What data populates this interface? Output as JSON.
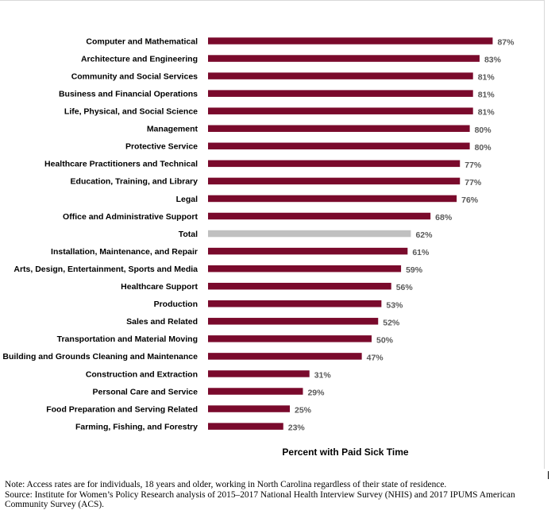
{
  "chart_data": {
    "type": "bar",
    "orientation": "horizontal",
    "xlabel": "Percent with Paid Sick Time",
    "categories": [
      "Computer and Mathematical",
      "Architecture and Engineering",
      "Community and Social Services",
      "Business and Financial Operations",
      "Life, Physical, and Social Science",
      "Management",
      "Protective Service",
      "Healthcare Practitioners and Technical",
      "Education, Training, and Library",
      "Legal",
      "Office and Administrative Support",
      "Total",
      "Installation, Maintenance, and Repair",
      "Arts, Design, Entertainment, Sports and Media",
      "Healthcare Support",
      "Production",
      "Sales and Related",
      "Transportation and Material Moving",
      "Building and Grounds Cleaning and Maintenance",
      "Construction and Extraction",
      "Personal Care and Service",
      "Food Preparation and Serving Related",
      "Farming, Fishing, and Forestry"
    ],
    "values": [
      87,
      83,
      81,
      81,
      81,
      80,
      80,
      77,
      77,
      76,
      68,
      62,
      61,
      59,
      56,
      53,
      52,
      50,
      47,
      31,
      29,
      25,
      23
    ],
    "value_labels": [
      "87%",
      "83%",
      "81%",
      "81%",
      "81%",
      "80%",
      "80%",
      "77%",
      "77%",
      "76%",
      "68%",
      "62%",
      "61%",
      "59%",
      "56%",
      "53%",
      "52%",
      "50%",
      "47%",
      "31%",
      "29%",
      "25%",
      "23%"
    ],
    "highlight_category": "Total",
    "colors": {
      "bar": "#7a0a2c",
      "highlight": "#c0c0c0",
      "value_label": "#595959"
    },
    "xlim": [
      0,
      100
    ],
    "grid": false,
    "legend": false
  },
  "notes": {
    "note": "Note: Access rates are for individuals, 18 years and older, working in North Carolina regardless of their state of residence.",
    "source": "Source: Institute for Women’s Policy Research analysis of 2015–2017 National Health Interview Survey (NHIS) and 2017 IPUMS American Community Survey (ACS)."
  }
}
